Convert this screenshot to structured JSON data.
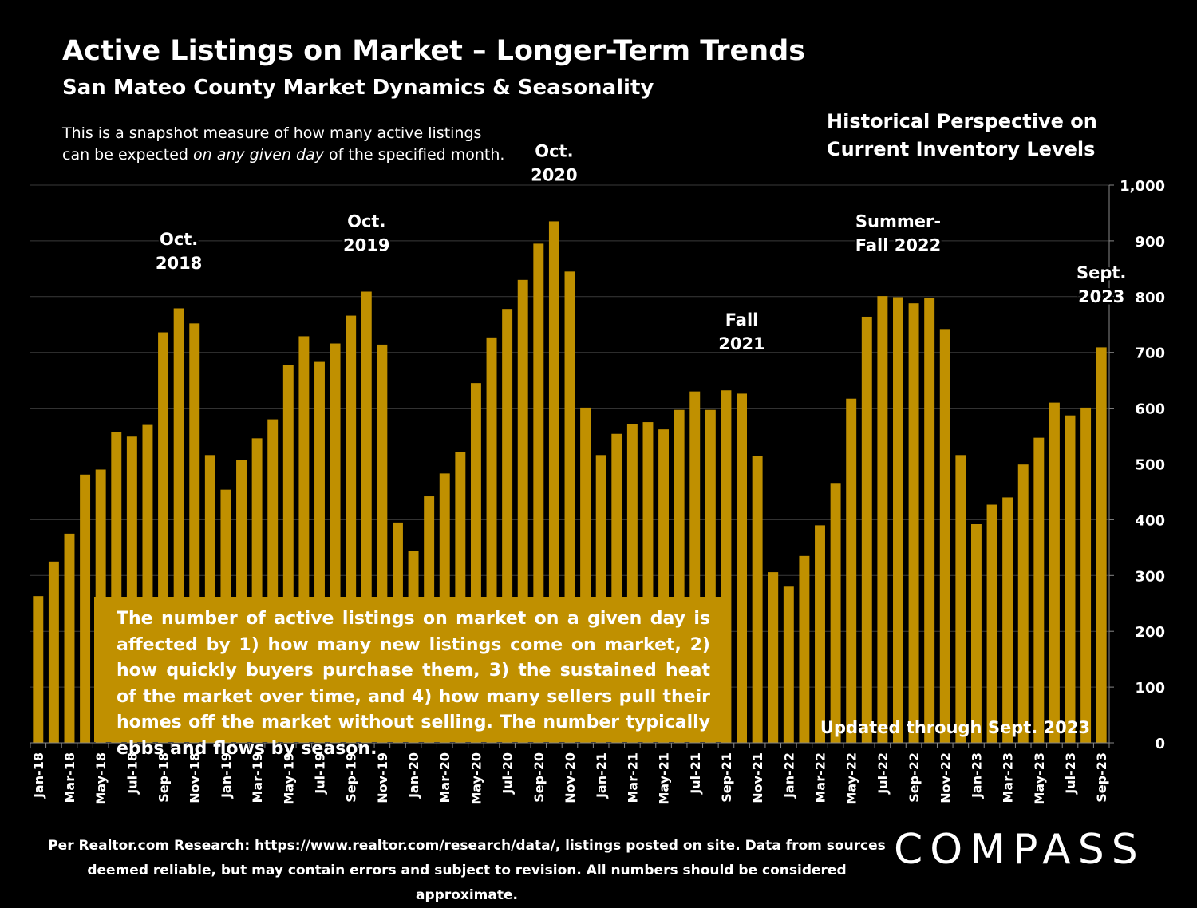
{
  "title": "Active Listings on Market – Longer-Term Trends",
  "subtitle": "San Mateo County Market Dynamics & Seasonality",
  "description": {
    "line1": "This is a snapshot measure of how many active listings",
    "line2_pre": "can be expected ",
    "line2_em": "on any given day",
    "line2_post": " of the specified month."
  },
  "historical": {
    "line1": "Historical Perspective on",
    "line2": "Current Inventory Levels"
  },
  "callout": "The number of active listings on market on a given day is affected by 1) how many new listings come on market, 2) how quickly buyers purchase them, 3) the sustained heat of the market over time, and 4) how many sellers pull their homes off the market without selling. The number typically ebbs and flows by season.",
  "updated": "Updated through Sept. 2023",
  "footer": {
    "line1": "Per Realtor.com Research:  https://www.realtor.com/research/data/, listings posted on site. Data from sources",
    "line2": "deemed reliable, but may contain errors and subject to revision. All numbers should be considered approximate."
  },
  "logo": "COMPASS",
  "colors": {
    "bar": "#c09000",
    "background": "#000000",
    "gridline": "#3a3a3a",
    "text": "#ffffff"
  },
  "chart_data": {
    "type": "bar",
    "categories": [
      "Jan-18",
      "Feb-18",
      "Mar-18",
      "Apr-18",
      "May-18",
      "Jun-18",
      "Jul-18",
      "Aug-18",
      "Sep-18",
      "Oct-18",
      "Nov-18",
      "Dec-18",
      "Jan-19",
      "Feb-19",
      "Mar-19",
      "Apr-19",
      "May-19",
      "Jun-19",
      "Jul-19",
      "Aug-19",
      "Sep-19",
      "Oct-19",
      "Nov-19",
      "Dec-19",
      "Jan-20",
      "Feb-20",
      "Mar-20",
      "Apr-20",
      "May-20",
      "Jun-20",
      "Jul-20",
      "Aug-20",
      "Sep-20",
      "Oct-20",
      "Nov-20",
      "Dec-20",
      "Jan-21",
      "Feb-21",
      "Mar-21",
      "Apr-21",
      "May-21",
      "Jun-21",
      "Jul-21",
      "Aug-21",
      "Sep-21",
      "Oct-21",
      "Nov-21",
      "Dec-21",
      "Jan-22",
      "Feb-22",
      "Mar-22",
      "Apr-22",
      "May-22",
      "Jun-22",
      "Jul-22",
      "Aug-22",
      "Sep-22",
      "Oct-22",
      "Nov-22",
      "Dec-22",
      "Jan-23",
      "Feb-23",
      "Mar-23",
      "Apr-23",
      "May-23",
      "Jun-23",
      "Jul-23",
      "Aug-23",
      "Sep-23"
    ],
    "tick_labels": [
      "Jan-18",
      "Mar-18",
      "May-18",
      "Jul-18",
      "Sep-18",
      "Nov-18",
      "Jan-19",
      "Mar-19",
      "May-19",
      "Jul-19",
      "Sep-19",
      "Nov-19",
      "Jan-20",
      "Mar-20",
      "May-20",
      "Jul-20",
      "Sep-20",
      "Nov-20",
      "Jan-21",
      "Mar-21",
      "May-21",
      "Jul-21",
      "Sep-21",
      "Nov-21",
      "Jan-22",
      "Mar-22",
      "May-22",
      "Jul-22",
      "Sep-22",
      "Nov-22",
      "Jan-23",
      "Mar-23",
      "May-23",
      "Jul-23",
      "Sep-23"
    ],
    "values": [
      263,
      325,
      375,
      481,
      490,
      557,
      549,
      570,
      736,
      779,
      752,
      516,
      454,
      507,
      546,
      580,
      678,
      729,
      683,
      716,
      766,
      809,
      714,
      395,
      344,
      442,
      483,
      521,
      645,
      727,
      778,
      830,
      895,
      935,
      845,
      601,
      516,
      554,
      572,
      575,
      562,
      597,
      630,
      597,
      632,
      626,
      514,
      306,
      280,
      335,
      390,
      466,
      617,
      764,
      801,
      799,
      788,
      797,
      742,
      516,
      392,
      427,
      440,
      499,
      547,
      610,
      587,
      601,
      709
    ],
    "y_ticks": [
      "0",
      "100",
      "200",
      "300",
      "400",
      "500",
      "600",
      "700",
      "800",
      "900",
      "1,000"
    ],
    "ylim": [
      0,
      1000
    ],
    "grid": true,
    "annotations": [
      {
        "lines": [
          "Oct.",
          "2018"
        ],
        "category": "Oct-18",
        "value": 850
      },
      {
        "lines": [
          "Oct.",
          "2019"
        ],
        "category": "Oct-19",
        "value": 882
      },
      {
        "lines": [
          "Oct.",
          "2020"
        ],
        "category": "Oct-20",
        "value": 1008
      },
      {
        "lines": [
          "Fall",
          "2021"
        ],
        "category": "Oct-21",
        "value": 705
      },
      {
        "lines": [
          "Summer-",
          "Fall 2022"
        ],
        "category": "Aug-22",
        "value": 882
      },
      {
        "lines": [
          "Sept.",
          "2023"
        ],
        "category": "Sep-23",
        "value": 790
      }
    ]
  }
}
